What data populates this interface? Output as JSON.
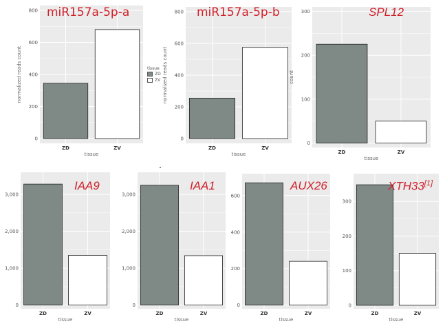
{
  "colors": {
    "panel_bg": "#ebebeb",
    "grid": "#ffffff",
    "zd_fill": "#7f8a87",
    "zv_fill": "#ffffff",
    "bar_edge": "#222222",
    "title": "#d0202a"
  },
  "legend": {
    "title": "tissue",
    "items": [
      {
        "label": "ZD",
        "color": "#7f8a87"
      },
      {
        "label": "ZV",
        "color": "#ffffff"
      }
    ]
  },
  "chart_data": [
    {
      "type": "bar",
      "title": "miR157a-5p-a",
      "title_style": "plain",
      "xlabel": "tissue",
      "ylabel": "normalized reads count",
      "categories": [
        "ZD",
        "ZV"
      ],
      "values": [
        345,
        680
      ],
      "ylim": [
        -30,
        830
      ],
      "yticks": [
        0,
        200,
        400,
        600,
        800
      ],
      "ytick_labels": [
        "0",
        "200",
        "400",
        "600",
        "800"
      ],
      "grid": true
    },
    {
      "type": "bar",
      "title": "miR157a-5p-b",
      "title_style": "plain",
      "xlabel": "tissue",
      "ylabel": "normalized reads count",
      "categories": [
        "ZD",
        "ZV"
      ],
      "values": [
        255,
        575
      ],
      "ylim": [
        -30,
        830
      ],
      "yticks": [
        0,
        200,
        400,
        600,
        800
      ],
      "ytick_labels": [
        "0",
        "200",
        "400",
        "600",
        "800"
      ],
      "grid": true
    },
    {
      "type": "bar",
      "title": "SPL12",
      "title_style": "italic",
      "xlabel": "tissue",
      "ylabel": "count",
      "categories": [
        "ZD",
        "ZV"
      ],
      "values": [
        225,
        50
      ],
      "ylim": [
        -10,
        310
      ],
      "yticks": [
        0,
        100,
        200,
        300
      ],
      "ytick_labels": [
        "0",
        "100",
        "200",
        "300"
      ],
      "grid": true
    },
    {
      "type": "bar",
      "title": "IAA9",
      "title_style": "italic",
      "xlabel": "tissue",
      "ylabel": "",
      "categories": [
        "ZD",
        "ZV"
      ],
      "values": [
        3280,
        1350
      ],
      "ylim": [
        -100,
        3600
      ],
      "yticks": [
        0,
        1000,
        2000,
        3000
      ],
      "ytick_labels": [
        "0",
        "1,000",
        "2,000",
        "3,000"
      ],
      "grid": true
    },
    {
      "type": "bar",
      "title": "IAA1",
      "title_style": "italic",
      "xlabel": "tissue",
      "ylabel": "",
      "categories": [
        "ZD",
        "ZV"
      ],
      "values": [
        3250,
        1340
      ],
      "ylim": [
        -100,
        3600
      ],
      "yticks": [
        0,
        1000,
        2000,
        3000
      ],
      "ytick_labels": [
        "0",
        "1,000",
        "2,000",
        "3,000"
      ],
      "grid": true
    },
    {
      "type": "bar",
      "title": "AUX26",
      "title_style": "italic",
      "xlabel": "tissue",
      "ylabel": "",
      "categories": [
        "ZD",
        "ZV"
      ],
      "values": [
        670,
        240
      ],
      "ylim": [
        -20,
        720
      ],
      "yticks": [
        0,
        200,
        400,
        600
      ],
      "ytick_labels": [
        "0",
        "200",
        "400",
        "600"
      ],
      "grid": true
    },
    {
      "type": "bar",
      "title": "XTH33",
      "title_sup": "[1]",
      "title_style": "italic",
      "xlabel": "tissue",
      "ylabel": "",
      "categories": [
        "ZD",
        "ZV"
      ],
      "values": [
        348,
        150
      ],
      "ylim": [
        -10,
        380
      ],
      "yticks": [
        0,
        100,
        200,
        300
      ],
      "ytick_labels": [
        "0",
        "100",
        "200",
        "300"
      ],
      "grid": true
    }
  ]
}
